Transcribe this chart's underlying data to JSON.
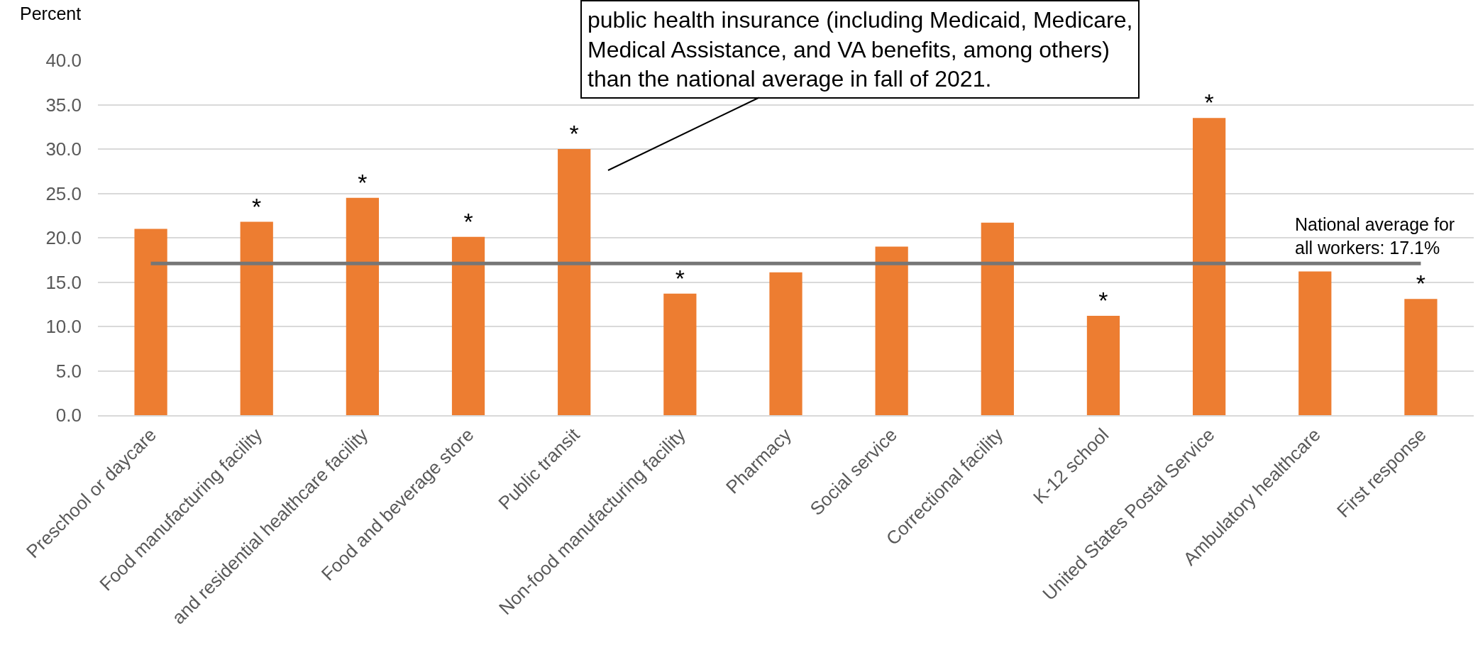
{
  "chart_data": {
    "type": "bar",
    "ylabel": "Percent",
    "categories": [
      "Preschool or daycare",
      "Food manufacturing facility",
      "and residential healthcare facility",
      "Food and beverage store",
      "Public transit",
      "Non-food manufacturing facility",
      "Pharmacy",
      "Social service",
      "Correctional facility",
      "K-12 school",
      "United States Postal Service",
      "Ambulatory healthcare",
      "First response"
    ],
    "values": [
      21.0,
      21.8,
      24.5,
      20.1,
      30.0,
      13.7,
      16.1,
      19.0,
      21.7,
      11.2,
      33.5,
      16.2,
      13.1
    ],
    "color": "#ed7d31",
    "value_labels": [
      null,
      "*",
      "*",
      "*",
      "*",
      "*",
      null,
      null,
      null,
      "*",
      "*",
      null,
      "*"
    ],
    "ylim": [
      0,
      40
    ],
    "yticks": [
      {
        "value": 0,
        "label": "0.0"
      },
      {
        "value": 5,
        "label": "5.0"
      },
      {
        "value": 10,
        "label": "10.0"
      },
      {
        "value": 15,
        "label": "15.0"
      },
      {
        "value": 20,
        "label": "20.0"
      },
      {
        "value": 25,
        "label": "25.0"
      },
      {
        "value": 30,
        "label": "30.0"
      },
      {
        "value": 35,
        "label": "35.0"
      },
      {
        "value": 40,
        "label": "40.0"
      }
    ],
    "grid": "y",
    "ref_lines": [
      {
        "axis": "y",
        "value": 17.1,
        "label": "National average for\nall workers: 17.1%",
        "color": "#767676",
        "line_style": "solid"
      }
    ],
    "annotations": [
      "public health insurance (including Medicaid, Medicare,\nMedical Assistance, and VA benefits, among others)\nthan the national average in fall of 2021."
    ]
  }
}
